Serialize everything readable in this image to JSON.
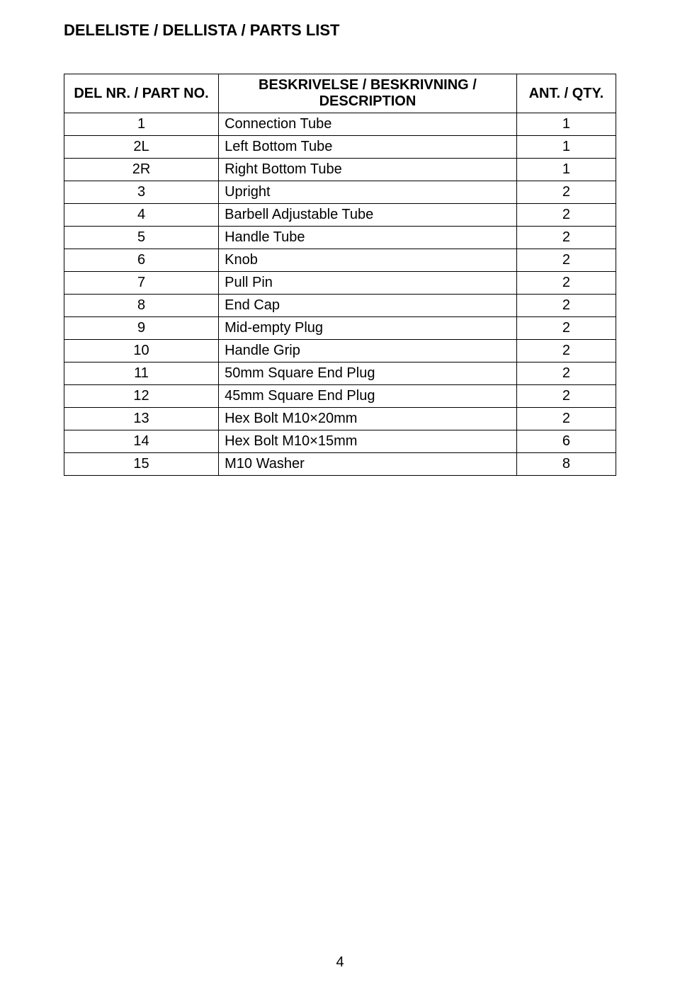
{
  "title": "DELELISTE / DELLISTA / PARTS LIST",
  "table": {
    "headers": {
      "part": "DEL NR. / PART NO.",
      "desc": "BESKRIVELSE / BESKRIVNING / DESCRIPTION",
      "qty": "ANT. / QTY."
    },
    "rows": [
      {
        "part": "1",
        "desc": "Connection Tube",
        "qty": "1"
      },
      {
        "part": "2L",
        "desc": "Left Bottom Tube",
        "qty": "1"
      },
      {
        "part": "2R",
        "desc": "Right Bottom Tube",
        "qty": "1"
      },
      {
        "part": "3",
        "desc": "Upright",
        "qty": "2"
      },
      {
        "part": "4",
        "desc": "Barbell Adjustable Tube",
        "qty": "2"
      },
      {
        "part": "5",
        "desc": "Handle Tube",
        "qty": "2"
      },
      {
        "part": "6",
        "desc": "Knob",
        "qty": "2"
      },
      {
        "part": "7",
        "desc": "Pull Pin",
        "qty": "2"
      },
      {
        "part": "8",
        "desc": "End Cap",
        "qty": "2"
      },
      {
        "part": "9",
        "desc": "Mid-empty Plug",
        "qty": "2"
      },
      {
        "part": "10",
        "desc": "Handle Grip",
        "qty": "2"
      },
      {
        "part": "11",
        "desc": "50mm Square End Plug",
        "qty": "2"
      },
      {
        "part": "12",
        "desc": "45mm Square End Plug",
        "qty": "2"
      },
      {
        "part": "13",
        "desc": "Hex Bolt M10×20mm",
        "qty": "2"
      },
      {
        "part": "14",
        "desc": "Hex Bolt M10×15mm",
        "qty": "6"
      },
      {
        "part": "15",
        "desc": "M10 Washer",
        "qty": "8"
      }
    ]
  },
  "page_number": "4"
}
